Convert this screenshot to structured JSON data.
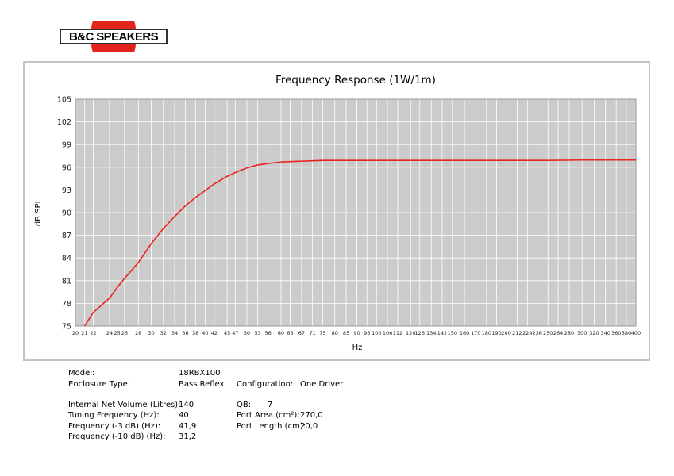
{
  "brand": {
    "logo_text": "B&C SPEAKERS",
    "colors": {
      "red": "#e2241b",
      "black": "#000000"
    }
  },
  "chart_data": {
    "type": "line",
    "title": "Frequency Response (1W/1m)",
    "xlabel": "Hz",
    "ylabel": "dB SPL",
    "x_scale": "log",
    "xlim": [
      20,
      400
    ],
    "ylim": [
      75,
      105
    ],
    "grid": true,
    "x_ticks": [
      20,
      21,
      22,
      24,
      25,
      26,
      28,
      30,
      32,
      34,
      36,
      38,
      40,
      42,
      45,
      47,
      50,
      53,
      56,
      60,
      63,
      67,
      71,
      75,
      80,
      85,
      90,
      95,
      100,
      106,
      112,
      120,
      126,
      134,
      142,
      150,
      160,
      170,
      180,
      190,
      200,
      212,
      224,
      236,
      250,
      264,
      280,
      300,
      320,
      340,
      360,
      380,
      400
    ],
    "y_ticks": [
      75,
      78,
      81,
      84,
      87,
      90,
      93,
      96,
      99,
      102,
      105
    ],
    "series": [
      {
        "color": "#e8251c",
        "x": [
          21,
          22,
          24,
          25,
          26,
          28,
          30,
          32,
          34,
          36,
          38,
          40,
          42,
          45,
          47,
          50,
          53,
          56,
          60,
          63,
          67,
          71,
          75,
          80,
          90,
          100,
          120,
          150,
          200,
          250,
          300,
          350,
          400
        ],
        "y": [
          75,
          76.8,
          78.7,
          80.1,
          81.3,
          83.4,
          85.9,
          87.9,
          89.5,
          90.9,
          92.0,
          92.9,
          93.8,
          94.8,
          95.3,
          95.9,
          96.3,
          96.5,
          96.7,
          96.75,
          96.8,
          96.85,
          96.9,
          96.9,
          96.9,
          96.9,
          96.9,
          96.9,
          96.9,
          96.9,
          96.95,
          96.95,
          96.95
        ]
      }
    ]
  },
  "specs": {
    "model_label": "Model:",
    "model_value": "18RBX100",
    "enclosure_label": "Enclosure Type:",
    "enclosure_value": "Bass Reflex",
    "configuration_label": "Configuration:",
    "configuration_value": "One Driver",
    "volume_label": "Internal Net Volume (Litres):",
    "volume_value": "140",
    "qb_label": "QB:",
    "qb_value": "7",
    "tuning_label": "Tuning Frequency (Hz):",
    "tuning_value": "40",
    "port_area_label": "Port Area (cm²):",
    "port_area_value": "270,0",
    "f3_label": "Frequency (-3 dB) (Hz):",
    "f3_value": "41,9",
    "port_length_label": "Port Length (cm):",
    "port_length_value": "20,0",
    "f10_label": "Frequency (-10 dB) (Hz):",
    "f10_value": "31,2"
  }
}
